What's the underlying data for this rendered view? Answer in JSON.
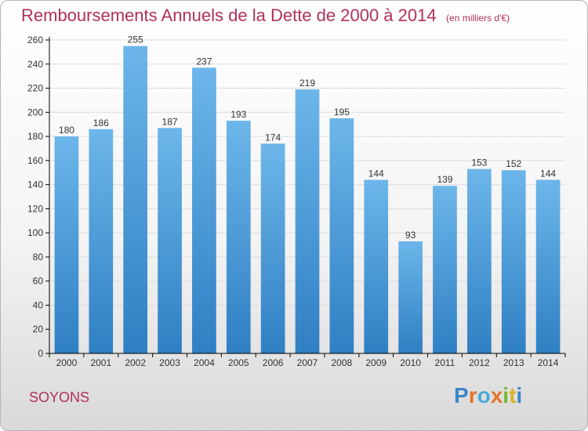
{
  "title": "Remboursements Annuels de la Dette de 2000 à 2014",
  "subtitle": "(en milliers d'€)",
  "commune": "SOYONS",
  "logo": {
    "text": "Proxiti",
    "colors": [
      "#3a86c8",
      "#e0752a",
      "#49a9d6",
      "#e0752a",
      "#76b82a",
      "#d6b22a",
      "#3a86c8"
    ]
  },
  "colors": {
    "bar_light": "#6cb6ea",
    "bar_dark": "#2f7fc3",
    "title": "#b0305a",
    "grid": "#dddddd",
    "axis": "#000000"
  },
  "chart_data": {
    "type": "bar",
    "categories": [
      "2000",
      "2001",
      "2002",
      "2003",
      "2004",
      "2005",
      "2006",
      "2007",
      "2008",
      "2009",
      "2010",
      "2011",
      "2012",
      "2013",
      "2014"
    ],
    "values": [
      180,
      186,
      255,
      187,
      237,
      193,
      174,
      219,
      195,
      144,
      93,
      139,
      153,
      152,
      144
    ],
    "ylim": [
      0,
      260
    ],
    "yticks": [
      0,
      20,
      40,
      60,
      80,
      100,
      120,
      140,
      160,
      180,
      200,
      220,
      240,
      260
    ],
    "grid": true,
    "data_labels": true
  }
}
